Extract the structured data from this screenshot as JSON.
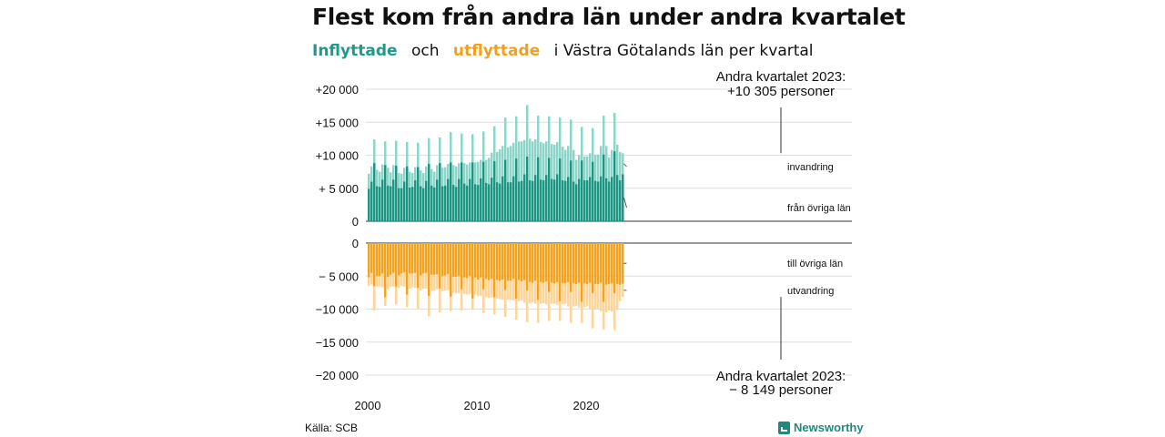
{
  "title": "Flest kom från andra län under andra kvartalet",
  "subtitle": {
    "inflow": "Inflyttade",
    "och": "och",
    "outflow": "utflyttade",
    "rest": "i Västra Götalands län per kvartal"
  },
  "source": "Källa: SCB",
  "brand": "Newsworthy",
  "colors": {
    "inflow_dark": "#1a9683",
    "inflow_light": "#8dd5c9",
    "outflow_dark": "#f4a31f",
    "outflow_light": "#fbd59a",
    "grid": "#dddddd"
  },
  "chart_data": {
    "type": "bar",
    "xlabel": "",
    "ylabel": "",
    "x_ticks": [
      "2000",
      "2010",
      "2020"
    ],
    "y_ticks_top": [
      "+20 000",
      "+15 000",
      "+10 000",
      "+ 5 000",
      "0"
    ],
    "y_ticks_bottom": [
      "0",
      "− 5 000",
      "−10 000",
      "−15 000",
      "−20 000"
    ],
    "ylim_top": [
      0,
      20000
    ],
    "ylim_bottom": [
      -20000,
      0
    ],
    "start": "2000 Q1",
    "end": "2023 Q2",
    "series_labels": {
      "invandring": "invandring",
      "fran_ovriga_lan": "från övriga län",
      "till_ovriga_lan": "till övriga län",
      "utvandring": "utvandring"
    },
    "annotation_top": [
      "Andra kvartalet 2023:",
      "+10 305 personer"
    ],
    "annotation_bottom": [
      "Andra kvartalet 2023:",
      "− 8 149 personer"
    ],
    "in_from_counties": [
      4900,
      6000,
      8800,
      5300,
      5200,
      6300,
      8500,
      5400,
      5300,
      6300,
      8400,
      5000,
      5000,
      6000,
      8300,
      5100,
      5200,
      6200,
      8200,
      5300,
      5000,
      6100,
      8700,
      5400,
      5100,
      6300,
      8800,
      5300,
      5400,
      6400,
      8900,
      5500,
      5200,
      6400,
      8900,
      5700,
      5400,
      6400,
      8900,
      5600,
      5500,
      6500,
      9000,
      5800,
      5600,
      6600,
      9100,
      5900,
      5700,
      6800,
      9300,
      5900,
      5900,
      6800,
      9500,
      6000,
      6100,
      7100,
      9800,
      6200,
      6100,
      7000,
      9700,
      6300,
      6200,
      7000,
      9600,
      6400,
      6300,
      7100,
      9500,
      6200,
      6100,
      6700,
      9200,
      6000,
      5600,
      6400,
      9200,
      6200,
      6200,
      6700,
      9000,
      6100,
      6000,
      6800,
      10100,
      6500,
      6000,
      6700,
      10600,
      7000,
      6200,
      7100
    ],
    "in_total": [
      7200,
      8300,
      12400,
      7800,
      7500,
      8600,
      12100,
      8100,
      7400,
      8500,
      12200,
      7300,
      7200,
      8100,
      12000,
      7500,
      7300,
      8200,
      11900,
      7700,
      7300,
      8300,
      12600,
      7900,
      7500,
      8500,
      12700,
      8100,
      8200,
      8700,
      13500,
      8500,
      8300,
      8800,
      13300,
      8800,
      8600,
      8900,
      13200,
      8900,
      9000,
      9300,
      13600,
      9300,
      9600,
      10400,
      14400,
      10500,
      10900,
      11400,
      15700,
      11200,
      11400,
      11900,
      15900,
      12100,
      12100,
      12300,
      17600,
      12500,
      12100,
      12400,
      16000,
      12000,
      11800,
      12100,
      15900,
      11700,
      11600,
      12000,
      15700,
      11300,
      10800,
      11400,
      15400,
      10800,
      9300,
      10000,
      14300,
      9800,
      9800,
      10300,
      14100,
      10100,
      10100,
      11400,
      16000,
      11400,
      9700,
      10800,
      16400,
      11600,
      10500,
      10305
    ],
    "out_to_counties": [
      -5200,
      -4500,
      -6500,
      -5000,
      -5000,
      -4600,
      -8200,
      -5100,
      -4800,
      -4500,
      -6600,
      -4900,
      -4600,
      -4400,
      -7800,
      -4600,
      -4600,
      -4500,
      -6800,
      -4900,
      -4600,
      -4500,
      -8000,
      -4800,
      -4800,
      -4700,
      -6900,
      -5000,
      -4900,
      -4700,
      -8100,
      -5100,
      -5100,
      -5000,
      -7000,
      -5200,
      -5300,
      -5000,
      -8400,
      -5200,
      -5500,
      -5200,
      -7000,
      -5400,
      -5600,
      -5400,
      -8200,
      -5600,
      -5700,
      -5500,
      -7100,
      -5700,
      -5700,
      -5400,
      -8400,
      -5600,
      -5800,
      -5600,
      -7200,
      -5900,
      -6000,
      -5700,
      -8600,
      -5900,
      -6000,
      -5800,
      -7400,
      -6000,
      -6100,
      -5900,
      -8800,
      -6100,
      -6100,
      -5900,
      -7400,
      -6100,
      -6200,
      -6000,
      -8900,
      -6100,
      -6200,
      -6000,
      -7600,
      -6200,
      -6200,
      -6000,
      -8900,
      -6300,
      -6200,
      -6100,
      -7600,
      -6200,
      -6300,
      -6149
    ],
    "out_total": [
      -6500,
      -6300,
      -10200,
      -6600,
      -6600,
      -6700,
      -9500,
      -7000,
      -6600,
      -6600,
      -9300,
      -6800,
      -6500,
      -6600,
      -9700,
      -6900,
      -6700,
      -6800,
      -10000,
      -7200,
      -6900,
      -6900,
      -11100,
      -7200,
      -7200,
      -7000,
      -10500,
      -7300,
      -7200,
      -7100,
      -10300,
      -7500,
      -7600,
      -7600,
      -10200,
      -7700,
      -7800,
      -7700,
      -10100,
      -7800,
      -8000,
      -8000,
      -10600,
      -8200,
      -8300,
      -8200,
      -10800,
      -8400,
      -8500,
      -8600,
      -11200,
      -8600,
      -8600,
      -8700,
      -11600,
      -8800,
      -8700,
      -9000,
      -12000,
      -9100,
      -9000,
      -9200,
      -12100,
      -9200,
      -9100,
      -9300,
      -11800,
      -9200,
      -9200,
      -9400,
      -11800,
      -9300,
      -9200,
      -9600,
      -12100,
      -9600,
      -9500,
      -9800,
      -12100,
      -9700,
      -9600,
      -10000,
      -12900,
      -10000,
      -9900,
      -10300,
      -13100,
      -10500,
      -10200,
      -10400,
      -13200,
      -10100,
      -8800,
      -8149
    ]
  }
}
